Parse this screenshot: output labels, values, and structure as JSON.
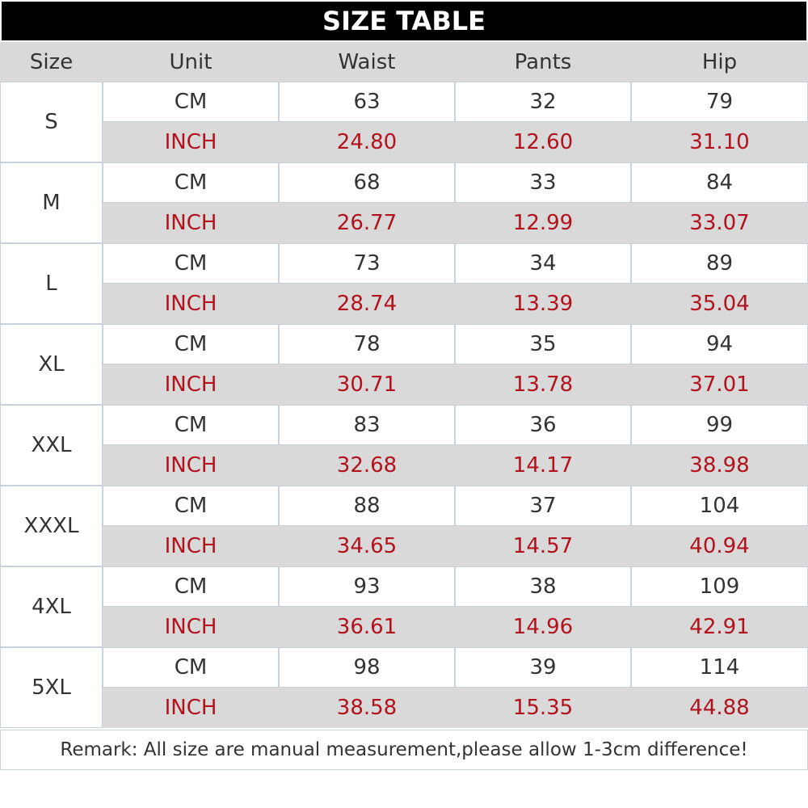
{
  "header": {
    "title": "SIZE TABLE"
  },
  "table": {
    "columns": [
      "Size",
      "Unit",
      "Waist",
      "Pants",
      "Hip"
    ],
    "rows": [
      {
        "size": "S",
        "cm": {
          "unit": "CM",
          "values": [
            "63",
            "32",
            "79"
          ]
        },
        "inch": {
          "unit": "INCH",
          "values": [
            "24.80",
            "12.60",
            "31.10"
          ]
        }
      },
      {
        "size": "M",
        "cm": {
          "unit": "CM",
          "values": [
            "68",
            "33",
            "84"
          ]
        },
        "inch": {
          "unit": "INCH",
          "values": [
            "26.77",
            "12.99",
            "33.07"
          ]
        }
      },
      {
        "size": "L",
        "cm": {
          "unit": "CM",
          "values": [
            "73",
            "34",
            "89"
          ]
        },
        "inch": {
          "unit": "INCH",
          "values": [
            "28.74",
            "13.39",
            "35.04"
          ]
        }
      },
      {
        "size": "XL",
        "cm": {
          "unit": "CM",
          "values": [
            "78",
            "35",
            "94"
          ]
        },
        "inch": {
          "unit": "INCH",
          "values": [
            "30.71",
            "13.78",
            "37.01"
          ]
        }
      },
      {
        "size": "XXL",
        "cm": {
          "unit": "CM",
          "values": [
            "83",
            "36",
            "99"
          ]
        },
        "inch": {
          "unit": "INCH",
          "values": [
            "32.68",
            "14.17",
            "38.98"
          ]
        }
      },
      {
        "size": "XXXL",
        "cm": {
          "unit": "CM",
          "values": [
            "88",
            "37",
            "104"
          ]
        },
        "inch": {
          "unit": "INCH",
          "values": [
            "34.65",
            "14.57",
            "40.94"
          ]
        }
      },
      {
        "size": "4XL",
        "cm": {
          "unit": "CM",
          "values": [
            "93",
            "38",
            "109"
          ]
        },
        "inch": {
          "unit": "INCH",
          "values": [
            "36.61",
            "14.96",
            "42.91"
          ]
        }
      },
      {
        "size": "5XL",
        "cm": {
          "unit": "CM",
          "values": [
            "98",
            "39",
            "114"
          ]
        },
        "inch": {
          "unit": "INCH",
          "values": [
            "38.58",
            "15.35",
            "44.88"
          ]
        }
      }
    ]
  },
  "remark": "Remark: All size are manual measurement,please allow 1-3cm difference!"
}
